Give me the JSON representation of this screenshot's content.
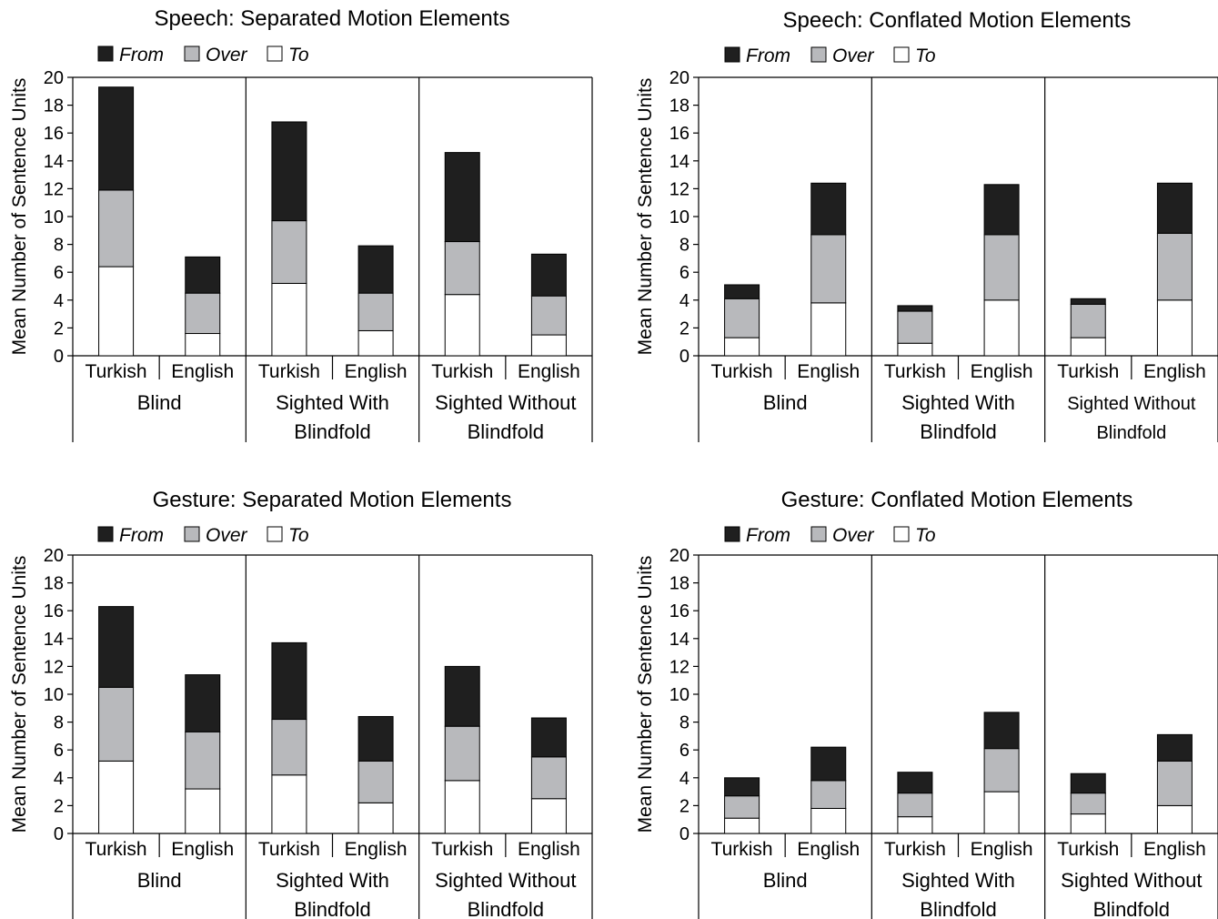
{
  "y_axis_label": "Mean Number of Sentence Units",
  "legend": {
    "from": "From",
    "over": "Over",
    "to": "To"
  },
  "colors": {
    "from": "#1f1f1f",
    "over": "#b8b9bc",
    "to": "#ffffff",
    "stroke": "#000000"
  },
  "chart_data": [
    {
      "type": "bar",
      "stacked": true,
      "title": "Speech: Separated Motion Elements",
      "ylabel": "Mean Number of Sentence Units",
      "ylim": [
        0,
        20
      ],
      "yticks": [
        0,
        2,
        4,
        6,
        8,
        10,
        12,
        14,
        16,
        18,
        20
      ],
      "groups": [
        [
          "Blind"
        ],
        [
          "Sighted With",
          "Blindfold"
        ],
        [
          "Sighted Without",
          "Blindfold"
        ]
      ],
      "categories": [
        "Turkish",
        "English",
        "Turkish",
        "English",
        "Turkish",
        "English"
      ],
      "series": [
        {
          "name": "To",
          "values": [
            6.4,
            1.6,
            5.2,
            1.8,
            4.4,
            1.5
          ]
        },
        {
          "name": "Over",
          "values": [
            5.5,
            2.9,
            4.5,
            2.7,
            3.8,
            2.8
          ]
        },
        {
          "name": "From",
          "values": [
            7.4,
            2.6,
            7.1,
            3.4,
            6.4,
            3.0
          ]
        }
      ]
    },
    {
      "type": "bar",
      "stacked": true,
      "title": "Speech: Conflated Motion Elements",
      "ylabel": "Mean Number of Sentence Units",
      "ylim": [
        0,
        20
      ],
      "yticks": [
        0,
        2,
        4,
        6,
        8,
        10,
        12,
        14,
        16,
        18,
        20
      ],
      "groups": [
        [
          "Blind"
        ],
        [
          "Sighted With",
          "Blindfold"
        ],
        [
          "Sighted Without",
          "Blindfold"
        ]
      ],
      "categories": [
        "Turkish",
        "English",
        "Turkish",
        "English",
        "Turkish",
        "English"
      ],
      "series": [
        {
          "name": "To",
          "values": [
            1.3,
            3.8,
            0.9,
            4.0,
            1.3,
            4.0
          ]
        },
        {
          "name": "Over",
          "values": [
            2.8,
            4.9,
            2.3,
            4.7,
            2.4,
            4.8
          ]
        },
        {
          "name": "From",
          "values": [
            1.0,
            3.7,
            0.4,
            3.6,
            0.4,
            3.6
          ]
        }
      ]
    },
    {
      "type": "bar",
      "stacked": true,
      "title": "Gesture: Separated Motion Elements",
      "ylabel": "Mean Number of Sentence Units",
      "ylim": [
        0,
        20
      ],
      "yticks": [
        0,
        2,
        4,
        6,
        8,
        10,
        12,
        14,
        16,
        18,
        20
      ],
      "groups": [
        [
          "Blind"
        ],
        [
          "Sighted With",
          "Blindfold"
        ],
        [
          "Sighted Without",
          "Blindfold"
        ]
      ],
      "categories": [
        "Turkish",
        "English",
        "Turkish",
        "English",
        "Turkish",
        "English"
      ],
      "series": [
        {
          "name": "To",
          "values": [
            5.2,
            3.2,
            4.2,
            2.2,
            3.8,
            2.5
          ]
        },
        {
          "name": "Over",
          "values": [
            5.3,
            4.1,
            4.0,
            3.0,
            3.9,
            3.0
          ]
        },
        {
          "name": "From",
          "values": [
            5.8,
            4.1,
            5.5,
            3.2,
            4.3,
            2.8
          ]
        }
      ]
    },
    {
      "type": "bar",
      "stacked": true,
      "title": "Gesture: Conflated Motion Elements",
      "ylabel": "Mean Number of Sentence Units",
      "ylim": [
        0,
        20
      ],
      "yticks": [
        0,
        2,
        4,
        6,
        8,
        10,
        12,
        14,
        16,
        18,
        20
      ],
      "groups": [
        [
          "Blind"
        ],
        [
          "Sighted With",
          "Blindfold"
        ],
        [
          "Sighted Without",
          "Blindfold"
        ]
      ],
      "categories": [
        "Turkish",
        "English",
        "Turkish",
        "English",
        "Turkish",
        "English"
      ],
      "series": [
        {
          "name": "To",
          "values": [
            1.1,
            1.8,
            1.2,
            3.0,
            1.4,
            2.0
          ]
        },
        {
          "name": "Over",
          "values": [
            1.6,
            2.0,
            1.7,
            3.1,
            1.5,
            3.2
          ]
        },
        {
          "name": "From",
          "values": [
            1.3,
            2.4,
            1.5,
            2.6,
            1.4,
            1.9
          ]
        }
      ]
    }
  ]
}
